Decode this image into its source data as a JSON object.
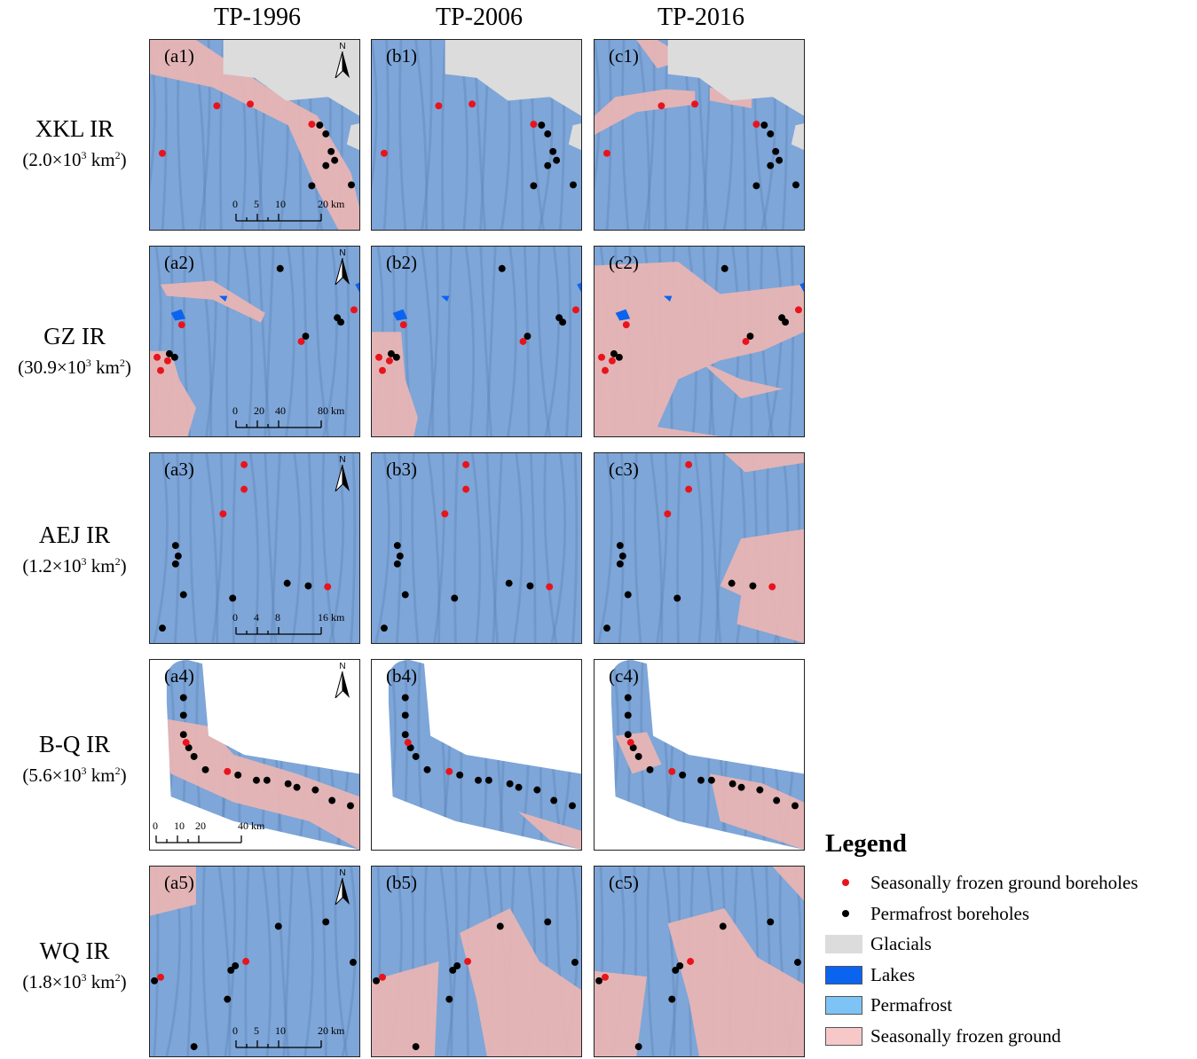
{
  "columns": [
    "TP-1996",
    "TP-2006",
    "TP-2016"
  ],
  "rows": [
    {
      "name": "XKL IR",
      "area_base": "(2.0×10",
      "area_exp": "3",
      "area_unit": " km",
      "area_unit_exp": "2",
      "area_close": ")"
    },
    {
      "name": "GZ IR",
      "area_base": "(30.9×10",
      "area_exp": "3",
      "area_unit": " km",
      "area_unit_exp": "2",
      "area_close": ")"
    },
    {
      "name": "AEJ IR",
      "area_base": "(1.2×10",
      "area_exp": "3",
      "area_unit": " km",
      "area_unit_exp": "2",
      "area_close": ")"
    },
    {
      "name": "B-Q IR",
      "area_base": "(5.6×10",
      "area_exp": "3",
      "area_unit": " km",
      "area_unit_exp": "2",
      "area_close": ")"
    },
    {
      "name": "WQ IR",
      "area_base": "(1.8×10",
      "area_exp": "3",
      "area_unit": " km",
      "area_unit_exp": "2",
      "area_close": ")"
    }
  ],
  "panel_labels": [
    [
      "(a1)",
      "(b1)",
      "(c1)"
    ],
    [
      "(a2)",
      "(b2)",
      "(c2)"
    ],
    [
      "(a3)",
      "(b3)",
      "(c3)"
    ],
    [
      "(a4)",
      "(b4)",
      "(c4)"
    ],
    [
      "(a5)",
      "(b5)",
      "(c5)"
    ]
  ],
  "north_label": "N",
  "scalebars": [
    {
      "ticks": [
        "0",
        "5",
        "10",
        "20"
      ],
      "unit": "km"
    },
    {
      "ticks": [
        "0",
        "20",
        "40",
        "80"
      ],
      "unit": "km"
    },
    {
      "ticks": [
        "0",
        "4",
        "8",
        "16"
      ],
      "unit": "km"
    },
    {
      "ticks": [
        "0",
        "10",
        "20",
        "40"
      ],
      "unit": "km"
    },
    {
      "ticks": [
        "0",
        "5",
        "10",
        "20"
      ],
      "unit": "km"
    }
  ],
  "legend": {
    "title": "Legend",
    "items": [
      {
        "label": "Seasonally frozen ground boreholes",
        "kind": "dot",
        "color": "#e8141c"
      },
      {
        "label": "Permafrost boreholes",
        "kind": "dot",
        "color": "#000000"
      },
      {
        "label": "Glacials",
        "kind": "swatch",
        "color": "#dcdcdc"
      },
      {
        "label": "Lakes",
        "kind": "swatch",
        "color": "#0a64f0"
      },
      {
        "label": "Permafrost",
        "kind": "swatch",
        "color": "#7ec3f5"
      },
      {
        "label": "Seasonally frozen ground",
        "kind": "swatch",
        "color": "#f7c8c8"
      }
    ]
  },
  "colors": {
    "permafrost_terrain": "#7ea6d8",
    "seasonal_terrain": "#e8b4b4",
    "glacial": "#dcdcdc",
    "lake": "#0a64f0",
    "sfg_borehole": "#e8141c",
    "pf_borehole": "#000000"
  }
}
